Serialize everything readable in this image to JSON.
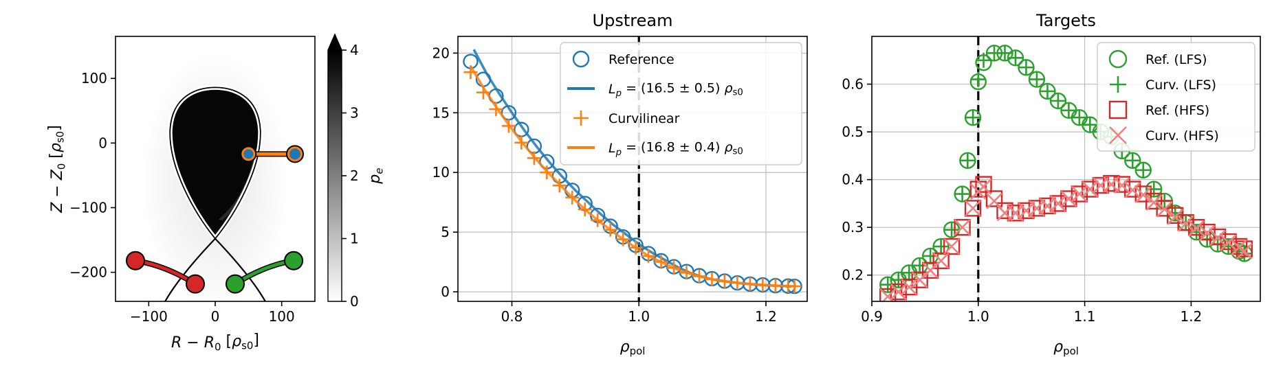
{
  "chart_data": [
    {
      "type": "heatmap",
      "title": "",
      "xlabel": "R − R₀ [ρs0]",
      "ylabel": "Z − Z₀ [ρs0]",
      "xlim": [
        -150,
        150
      ],
      "ylim": [
        -245,
        165
      ],
      "xticks": [
        -100,
        0,
        100
      ],
      "yticks": [
        -200,
        -100,
        0,
        100
      ],
      "colorbar": {
        "label": "pe",
        "range": [
          0,
          4
        ],
        "ticks": [
          0,
          1,
          2,
          3,
          4
        ],
        "extend": "max",
        "cmap": "gray_r"
      },
      "probe_lines": [
        {
          "name": "upstream",
          "color": "#ff7f0e",
          "marker_color": "#1f77b4",
          "from": [
            50,
            -17
          ],
          "to": [
            120,
            -17
          ]
        },
        {
          "name": "hfs target",
          "color": "#d62728",
          "from": [
            -120,
            -182
          ],
          "to": [
            -30,
            -218
          ]
        },
        {
          "name": "lfs target",
          "color": "#2ca02c",
          "from": [
            30,
            -218
          ],
          "to": [
            118,
            -182
          ]
        }
      ]
    },
    {
      "type": "scatter",
      "title": "Upstream",
      "xlabel": "ρpol",
      "ylabel": "",
      "xlim": [
        0.715,
        1.265
      ],
      "ylim": [
        -0.8,
        21.4
      ],
      "xticks": [
        "0.8",
        "1.0",
        "1.2"
      ],
      "yticks": [
        "0",
        "5",
        "10",
        "15",
        "20"
      ],
      "grid": true,
      "legend_position": "top-right",
      "vline_x": 1.0,
      "series": [
        {
          "name": "Reference",
          "marker": "circle",
          "color": "#1f77b4",
          "x": [
            0.735,
            0.755,
            0.775,
            0.795,
            0.815,
            0.835,
            0.855,
            0.875,
            0.895,
            0.915,
            0.935,
            0.955,
            0.975,
            0.995,
            1.015,
            1.035,
            1.055,
            1.075,
            1.095,
            1.115,
            1.135,
            1.155,
            1.175,
            1.195,
            1.215,
            1.235,
            1.245
          ],
          "y": [
            19.3,
            17.8,
            16.4,
            15.0,
            13.6,
            12.2,
            10.9,
            9.7,
            8.5,
            7.4,
            6.4,
            5.5,
            4.6,
            3.9,
            3.2,
            2.6,
            2.1,
            1.7,
            1.35,
            1.1,
            0.9,
            0.75,
            0.65,
            0.58,
            0.52,
            0.48,
            0.46
          ]
        },
        {
          "name": "Lp = (16.5 ± 0.5) ρs0",
          "marker": "line",
          "color": "#1f77b4",
          "x": [
            0.74,
            0.76,
            0.78,
            0.8,
            0.82,
            0.84,
            0.86,
            0.88,
            0.9,
            0.92,
            0.94,
            0.96,
            0.98,
            1.0,
            1.02,
            1.04,
            1.06,
            1.08,
            1.1,
            1.12,
            1.14,
            1.16,
            1.18,
            1.2,
            1.22,
            1.24
          ],
          "y": [
            20.3,
            18.3,
            16.6,
            15.0,
            13.5,
            12.1,
            10.8,
            9.6,
            8.5,
            7.5,
            6.5,
            5.6,
            4.8,
            4.0,
            3.3,
            2.7,
            2.1,
            1.6,
            1.25,
            1.0,
            0.85,
            0.72,
            0.62,
            0.55,
            0.5,
            0.45
          ]
        },
        {
          "name": "Curvilinear",
          "marker": "plus",
          "color": "#ff7f0e",
          "x": [
            0.735,
            0.755,
            0.775,
            0.795,
            0.815,
            0.835,
            0.855,
            0.875,
            0.895,
            0.915,
            0.935,
            0.955,
            0.975,
            0.995,
            1.015,
            1.035,
            1.055,
            1.075,
            1.095,
            1.115,
            1.135,
            1.155,
            1.175,
            1.195,
            1.215,
            1.235,
            1.245
          ],
          "y": [
            18.4,
            16.7,
            15.3,
            13.9,
            12.5,
            11.2,
            10.0,
            8.9,
            7.9,
            6.9,
            6.0,
            5.2,
            4.4,
            3.7,
            3.0,
            2.5,
            2.0,
            1.6,
            1.3,
            1.05,
            0.88,
            0.75,
            0.65,
            0.58,
            0.52,
            0.48,
            0.46
          ]
        },
        {
          "name": "Lp = (16.8 ± 0.4) ρs0",
          "marker": "line",
          "color": "#ff7f0e",
          "x": [
            0.735,
            0.755,
            0.775,
            0.795,
            0.815,
            0.835,
            0.855,
            0.875,
            0.895,
            0.915,
            0.935,
            0.955,
            0.975,
            0.995,
            1.015,
            1.035,
            1.055,
            1.075,
            1.095,
            1.115,
            1.135,
            1.155,
            1.175,
            1.195,
            1.215,
            1.235,
            1.245
          ],
          "y": [
            18.9,
            17.1,
            15.5,
            14.0,
            12.6,
            11.3,
            10.1,
            9.0,
            7.9,
            6.9,
            6.0,
            5.2,
            4.4,
            3.7,
            3.0,
            2.5,
            2.0,
            1.6,
            1.3,
            1.05,
            0.88,
            0.75,
            0.65,
            0.58,
            0.52,
            0.48,
            0.46
          ]
        }
      ]
    },
    {
      "type": "scatter",
      "title": "Targets",
      "xlabel": "ρpol",
      "ylabel": "",
      "xlim": [
        0.9,
        1.265
      ],
      "ylim": [
        0.145,
        0.7
      ],
      "xticks": [
        "0.9",
        "1.0",
        "1.1",
        "1.2"
      ],
      "yticks": [
        "0.2",
        "0.3",
        "0.4",
        "0.5",
        "0.6"
      ],
      "grid": true,
      "legend_position": "top-right",
      "vline_x": 1.0,
      "series": [
        {
          "name": "Ref. (LFS)",
          "marker": "circle",
          "color": "#2ca02c",
          "x": [
            0.915,
            0.925,
            0.935,
            0.945,
            0.955,
            0.965,
            0.975,
            0.985,
            0.99,
            0.995,
            1.0,
            1.005,
            1.015,
            1.025,
            1.035,
            1.045,
            1.055,
            1.065,
            1.075,
            1.085,
            1.095,
            1.105,
            1.115,
            1.125,
            1.135,
            1.145,
            1.155,
            1.165,
            1.175,
            1.185,
            1.195,
            1.205,
            1.215,
            1.225,
            1.235,
            1.245,
            1.25
          ],
          "y": [
            0.18,
            0.19,
            0.205,
            0.22,
            0.24,
            0.26,
            0.295,
            0.37,
            0.44,
            0.53,
            0.605,
            0.645,
            0.665,
            0.665,
            0.655,
            0.635,
            0.61,
            0.585,
            0.565,
            0.545,
            0.53,
            0.515,
            0.5,
            0.49,
            0.46,
            0.44,
            0.42,
            0.38,
            0.355,
            0.33,
            0.31,
            0.29,
            0.275,
            0.265,
            0.26,
            0.25,
            0.245
          ]
        },
        {
          "name": "Curv. (LFS)",
          "marker": "plus",
          "color": "#2ca02c",
          "x": [
            0.915,
            0.925,
            0.935,
            0.945,
            0.955,
            0.965,
            0.975,
            0.985,
            0.99,
            0.995,
            1.0,
            1.005,
            1.015,
            1.025,
            1.035,
            1.045,
            1.055,
            1.065,
            1.075,
            1.085,
            1.095,
            1.105,
            1.115,
            1.125,
            1.135,
            1.145,
            1.155,
            1.165,
            1.175,
            1.185,
            1.195,
            1.205,
            1.215,
            1.225,
            1.235,
            1.245,
            1.25
          ],
          "y": [
            0.18,
            0.19,
            0.205,
            0.22,
            0.24,
            0.26,
            0.295,
            0.37,
            0.44,
            0.53,
            0.61,
            0.65,
            0.665,
            0.665,
            0.655,
            0.635,
            0.61,
            0.585,
            0.565,
            0.545,
            0.53,
            0.515,
            0.5,
            0.49,
            0.46,
            0.44,
            0.42,
            0.38,
            0.355,
            0.33,
            0.31,
            0.29,
            0.275,
            0.265,
            0.26,
            0.25,
            0.245
          ]
        },
        {
          "name": "Ref. (HFS)",
          "marker": "square",
          "color": "#d62728",
          "x": [
            0.915,
            0.925,
            0.935,
            0.945,
            0.955,
            0.965,
            0.975,
            0.985,
            0.995,
            1.0,
            1.005,
            1.015,
            1.025,
            1.035,
            1.045,
            1.055,
            1.065,
            1.075,
            1.085,
            1.095,
            1.105,
            1.115,
            1.125,
            1.135,
            1.145,
            1.155,
            1.165,
            1.175,
            1.185,
            1.195,
            1.205,
            1.215,
            1.225,
            1.235,
            1.245,
            1.25
          ],
          "y": [
            0.155,
            0.165,
            0.175,
            0.19,
            0.21,
            0.23,
            0.26,
            0.3,
            0.34,
            0.38,
            0.39,
            0.36,
            0.335,
            0.33,
            0.335,
            0.34,
            0.345,
            0.35,
            0.36,
            0.37,
            0.38,
            0.388,
            0.392,
            0.39,
            0.38,
            0.37,
            0.355,
            0.34,
            0.325,
            0.31,
            0.3,
            0.29,
            0.28,
            0.27,
            0.26,
            0.255
          ]
        },
        {
          "name": "Curv. (HFS)",
          "marker": "cross",
          "color": "#f08080",
          "x": [
            0.915,
            0.925,
            0.935,
            0.945,
            0.955,
            0.965,
            0.975,
            0.985,
            0.995,
            1.0,
            1.005,
            1.015,
            1.025,
            1.035,
            1.045,
            1.055,
            1.065,
            1.075,
            1.085,
            1.095,
            1.105,
            1.115,
            1.125,
            1.135,
            1.145,
            1.155,
            1.165,
            1.175,
            1.185,
            1.195,
            1.205,
            1.215,
            1.225,
            1.235,
            1.245,
            1.25
          ],
          "y": [
            0.155,
            0.165,
            0.175,
            0.19,
            0.21,
            0.23,
            0.26,
            0.3,
            0.34,
            0.375,
            0.385,
            0.355,
            0.33,
            0.33,
            0.335,
            0.34,
            0.345,
            0.35,
            0.36,
            0.37,
            0.38,
            0.388,
            0.39,
            0.388,
            0.378,
            0.368,
            0.352,
            0.338,
            0.322,
            0.308,
            0.298,
            0.288,
            0.278,
            0.268,
            0.258,
            0.25
          ]
        }
      ]
    }
  ]
}
